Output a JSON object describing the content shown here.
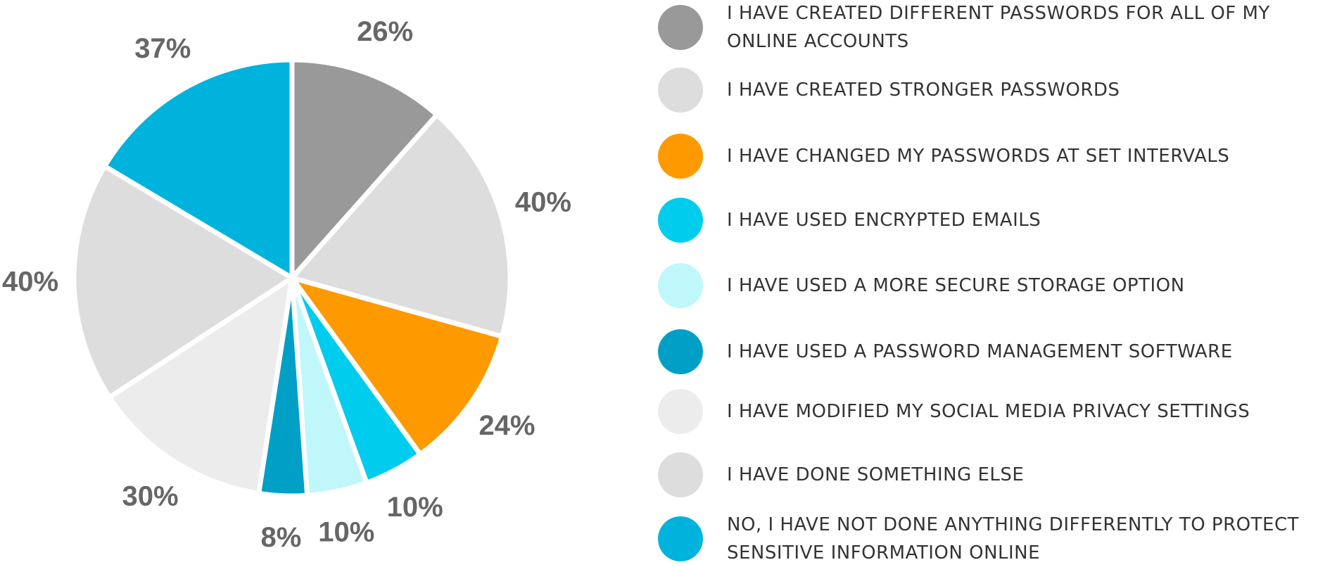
{
  "chart_data": {
    "type": "pie",
    "categories": [
      "I have created different passwords for all of my online accounts",
      "I have created stronger passwords",
      "I have changed my passwords at set intervals",
      "I have used encrypted emails",
      "I have used a more secure storage option",
      "I have used a password management software",
      "I have modified my social media privacy settings",
      "I have done something else",
      "No, I have not done anything differently to protect sensitive information online"
    ],
    "values": [
      26,
      40,
      24,
      10,
      10,
      8,
      30,
      40,
      37
    ],
    "value_labels": [
      "26%",
      "40%",
      "24%",
      "10%",
      "10%",
      "8%",
      "30%",
      "40%",
      "37%"
    ],
    "colors": [
      "#999999",
      "#dddddd",
      "#ff9900",
      "#00ccee",
      "#c0f7fb",
      "#00a0c6",
      "#ececec",
      "#dddddd",
      "#00b3dc"
    ]
  }
}
